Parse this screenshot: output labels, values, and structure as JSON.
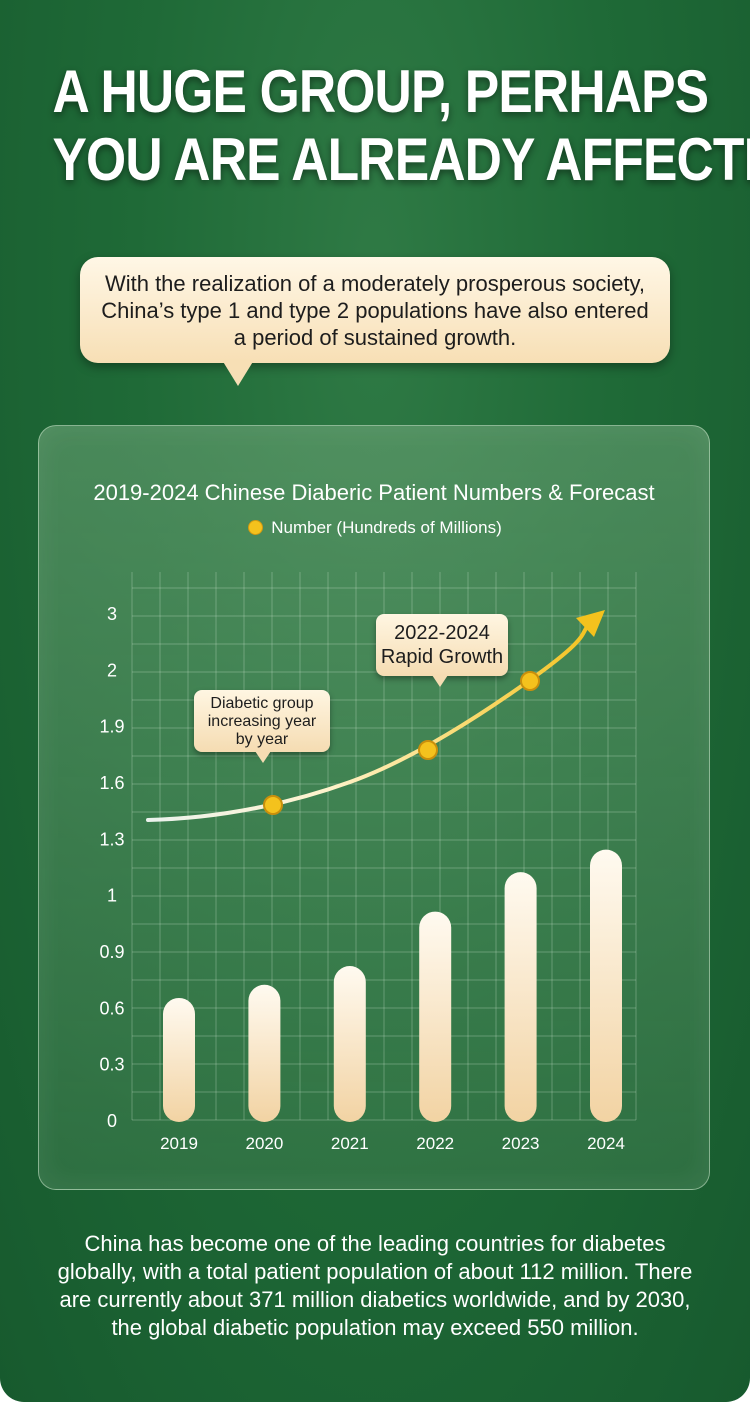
{
  "headline": {
    "line1": "A HUGE GROUP, PERHAPS",
    "line2": "YOU ARE ALREADY AFFECTED!"
  },
  "intro": "With the realization of a moderately prosperous society, China’s type 1 and type 2 populations have also entered a period of sustained growth.",
  "chart_data": {
    "type": "bar",
    "title": "2019-2024 Chinese Diaberic Patient Numbers & Forecast",
    "legend": {
      "label": "Number (Hundreds of Millions)",
      "placement": "top-center",
      "marker_color": "#f4c21d"
    },
    "categories": [
      "2019",
      "2020",
      "2021",
      "2022",
      "2023",
      "2024"
    ],
    "values": [
      0.65,
      0.72,
      0.82,
      0.97,
      1.12,
      1.24
    ],
    "y_ticks": [
      "0",
      "0.3",
      "0.6",
      "0.9",
      "1",
      "1.3",
      "1.6",
      "1.9",
      "2",
      "3"
    ],
    "grid": true,
    "bar_color": "#f6dfb8",
    "trend_line": {
      "color": "#f4c21d",
      "marker_points": [
        {
          "x": "2020",
          "label": ""
        },
        {
          "x": "2022",
          "label": ""
        },
        {
          "x": "2023",
          "label": ""
        }
      ]
    },
    "annotations": {
      "callout1": {
        "line1": "Diabetic group",
        "line2": "increasing year",
        "line3": "by year"
      },
      "callout2": {
        "line1": "2022-2024",
        "line2": "Rapid Growth"
      }
    }
  },
  "footer": "China has become one of the leading countries for diabetes globally, with a total patient population of about 112 million. There are currently about 371 million diabetics worldwide, and by 2030, the global diabetic population may exceed 550 million."
}
